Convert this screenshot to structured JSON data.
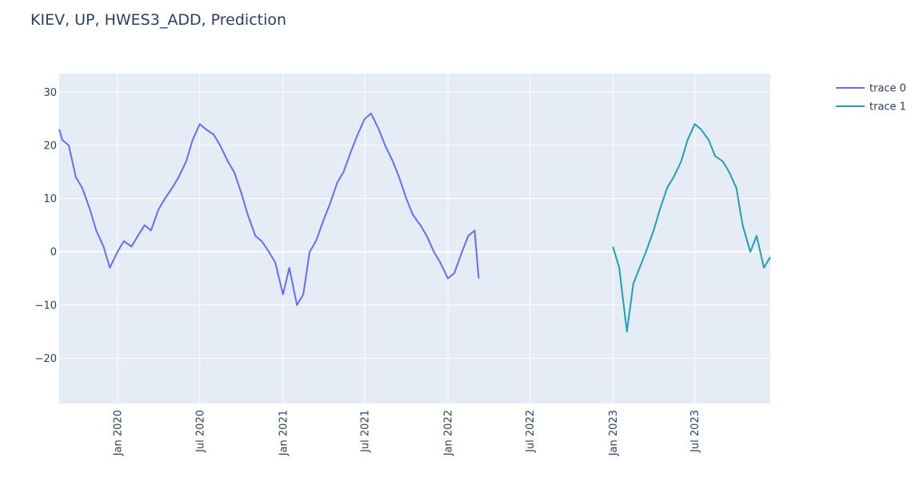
{
  "chart_data": {
    "type": "line",
    "title": "KIEV, UP, HWES3_ADD, Prediction",
    "xlabel": "",
    "ylabel": "",
    "x_range": [
      "2019-08-25",
      "2023-12-15"
    ],
    "ylim": [
      -28.5,
      33.5
    ],
    "y_ticks": [
      30,
      20,
      10,
      0,
      -10,
      -20
    ],
    "y_tick_labels": [
      "30",
      "20",
      "10",
      "0",
      "−10",
      "−20"
    ],
    "x_ticks": [
      "2020-01-01",
      "2020-07-01",
      "2021-01-01",
      "2021-07-01",
      "2022-01-01",
      "2022-07-01",
      "2023-01-01",
      "2023-07-01"
    ],
    "x_tick_labels": [
      "Jan 2020",
      "Jul 2020",
      "Jan 2021",
      "Jul 2021",
      "Jan 2022",
      "Jul 2022",
      "Jan 2023",
      "Jul 2023"
    ],
    "grid": true,
    "legend_position": "top-right",
    "plot_bgcolor": "#e5ecf6",
    "series": [
      {
        "name": "trace 0",
        "color": "#636efa",
        "x": [
          "2019-08-25",
          "2019-09-01",
          "2019-09-15",
          "2019-10-01",
          "2019-10-15",
          "2019-11-01",
          "2019-11-15",
          "2019-12-01",
          "2019-12-15",
          "2020-01-01",
          "2020-01-15",
          "2020-02-01",
          "2020-02-15",
          "2020-03-01",
          "2020-03-15",
          "2020-04-01",
          "2020-04-15",
          "2020-05-01",
          "2020-05-15",
          "2020-06-01",
          "2020-06-15",
          "2020-07-01",
          "2020-07-15",
          "2020-08-01",
          "2020-08-15",
          "2020-09-01",
          "2020-09-15",
          "2020-10-01",
          "2020-10-15",
          "2020-11-01",
          "2020-11-15",
          "2020-12-01",
          "2020-12-15",
          "2021-01-01",
          "2021-01-15",
          "2021-02-01",
          "2021-02-15",
          "2021-03-01",
          "2021-03-15",
          "2021-04-01",
          "2021-04-15",
          "2021-05-01",
          "2021-05-15",
          "2021-06-01",
          "2021-06-15",
          "2021-07-01",
          "2021-07-15",
          "2021-08-01",
          "2021-08-15",
          "2021-09-01",
          "2021-09-15",
          "2021-10-01",
          "2021-10-15",
          "2021-11-01",
          "2021-11-15",
          "2021-12-01",
          "2021-12-15",
          "2022-01-01",
          "2022-01-15",
          "2022-02-01",
          "2022-02-15",
          "2022-03-01",
          "2022-03-10"
        ],
        "y": [
          23,
          21,
          20,
          14,
          12,
          8,
          4,
          1,
          -3,
          0,
          2,
          1,
          3,
          5,
          4,
          8,
          10,
          12,
          14,
          17,
          21,
          24,
          23,
          22,
          20,
          17,
          15,
          11,
          7,
          3,
          2,
          0,
          -2,
          -8,
          -3,
          -10,
          -8,
          0,
          2,
          6,
          9,
          13,
          15,
          19,
          22,
          25,
          26,
          23,
          20,
          17,
          14,
          10,
          7,
          5,
          3,
          0,
          -2,
          -5,
          -4,
          0,
          3,
          4,
          -5
        ],
        "values_estimated": true
      },
      {
        "name": "trace 1",
        "color": "#1f9fb8",
        "x": [
          "2023-01-01",
          "2023-01-15",
          "2023-02-01",
          "2023-02-15",
          "2023-03-01",
          "2023-03-15",
          "2023-04-01",
          "2023-04-15",
          "2023-05-01",
          "2023-05-15",
          "2023-06-01",
          "2023-06-15",
          "2023-07-01",
          "2023-07-15",
          "2023-08-01",
          "2023-08-15",
          "2023-09-01",
          "2023-09-15",
          "2023-10-01",
          "2023-10-15",
          "2023-11-01",
          "2023-11-15",
          "2023-12-01",
          "2023-12-15"
        ],
        "y": [
          1,
          -3,
          -15,
          -6,
          -3,
          0,
          4,
          8,
          12,
          14,
          17,
          21,
          24,
          23,
          21,
          18,
          17,
          15,
          12,
          5,
          0,
          3,
          -3,
          -1
        ],
        "values_estimated": true
      }
    ]
  }
}
